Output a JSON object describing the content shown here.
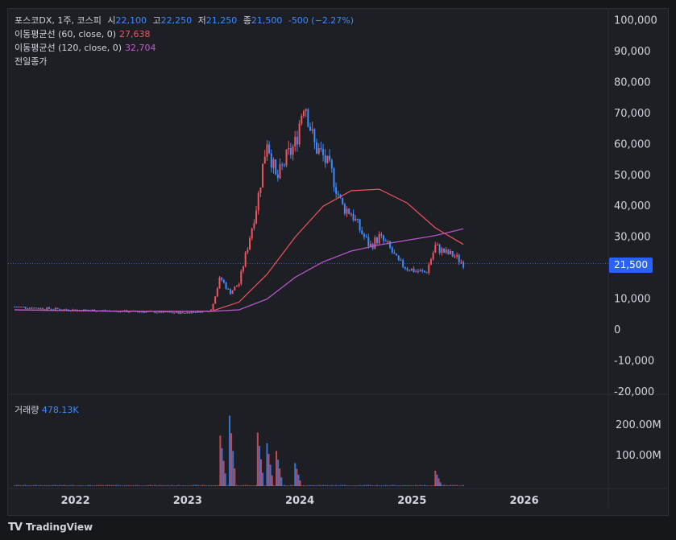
{
  "header": {
    "symbol": "포스코DX, 1주, 코스피",
    "open_label": "시",
    "open": "22,100",
    "high_label": "고",
    "high": "22,250",
    "low_label": "저",
    "low": "21,250",
    "close_label": "종",
    "close": "21,500",
    "change": "-500 (−2.27%)"
  },
  "indicators": [
    {
      "label": "이동평균선 (60, close, 0)",
      "value": "27,638",
      "color": "#f0545e"
    },
    {
      "label": "이동평균선 (120, close, 0)",
      "value": "32,704",
      "color": "#c158d4"
    },
    {
      "label": "전일종가",
      "value": "",
      "color": "#d1d4dc"
    }
  ],
  "current_price_tag": "21,500",
  "volume_panel": {
    "label": "거래량",
    "value": "478.13K"
  },
  "footer": {
    "brand": "TradingView",
    "logo": "TV"
  },
  "colors": {
    "up": "#f0545e",
    "down": "#3d8bff",
    "ma60": "#f0545e",
    "ma120": "#c158d4",
    "price_line": "#2962ff"
  },
  "chart_data": {
    "type": "candlestick",
    "x_ticks": [
      "2022",
      "2023",
      "2024",
      "2025",
      "2026"
    ],
    "price_axis_ticks": [
      "100,000",
      "90,000",
      "80,000",
      "70,000",
      "60,000",
      "50,000",
      "40,000",
      "30,000",
      "20,000",
      "10,000",
      "0",
      "-10,000",
      "-20,000"
    ],
    "price_ylim": [
      -20000,
      100000
    ],
    "volume_axis_ticks": [
      "200.00M",
      "100.00M"
    ],
    "volume_ylim": [
      0,
      245000000
    ],
    "last_close": 21500,
    "close_series": [
      [
        "2021-06",
        7500
      ],
      [
        "2021-09",
        7000
      ],
      [
        "2021-12",
        6500
      ],
      [
        "2022-03",
        6300
      ],
      [
        "2022-06",
        6000
      ],
      [
        "2022-09",
        5800
      ],
      [
        "2022-12",
        5500
      ],
      [
        "2023-02",
        6000
      ],
      [
        "2023-03",
        6500
      ],
      [
        "2023-04",
        17000
      ],
      [
        "2023-05",
        12000
      ],
      [
        "2023-06",
        15000
      ],
      [
        "2023-07",
        28000
      ],
      [
        "2023-08",
        42000
      ],
      [
        "2023-09",
        62000
      ],
      [
        "2023-10",
        48000
      ],
      [
        "2023-11",
        55000
      ],
      [
        "2023-12",
        60000
      ],
      [
        "2024-01",
        75000
      ],
      [
        "2024-02",
        60000
      ],
      [
        "2024-03",
        56000
      ],
      [
        "2024-04",
        50000
      ],
      [
        "2024-05",
        40000
      ],
      [
        "2024-06",
        38000
      ],
      [
        "2024-07",
        32000
      ],
      [
        "2024-08",
        27000
      ],
      [
        "2024-09",
        30000
      ],
      [
        "2024-10",
        27000
      ],
      [
        "2024-11",
        22000
      ],
      [
        "2024-12",
        20000
      ],
      [
        "2025-01",
        19000
      ],
      [
        "2025-02",
        18500
      ],
      [
        "2025-03",
        27000
      ],
      [
        "2025-04",
        25000
      ],
      [
        "2025-05",
        24000
      ],
      [
        "2025-06",
        21500
      ]
    ],
    "ma60_series": [
      [
        "2021-06",
        6500
      ],
      [
        "2022-06",
        6000
      ],
      [
        "2023-03",
        6000
      ],
      [
        "2023-06",
        9000
      ],
      [
        "2023-09",
        18000
      ],
      [
        "2023-12",
        30000
      ],
      [
        "2024-03",
        40000
      ],
      [
        "2024-06",
        45000
      ],
      [
        "2024-09",
        45500
      ],
      [
        "2024-12",
        41000
      ],
      [
        "2025-03",
        33000
      ],
      [
        "2025-06",
        27638
      ]
    ],
    "ma120_series": [
      [
        "2021-06",
        6500
      ],
      [
        "2022-06",
        6000
      ],
      [
        "2023-03",
        6000
      ],
      [
        "2023-06",
        6500
      ],
      [
        "2023-09",
        10000
      ],
      [
        "2023-12",
        17000
      ],
      [
        "2024-03",
        22000
      ],
      [
        "2024-06",
        25500
      ],
      [
        "2024-09",
        27500
      ],
      [
        "2024-12",
        29000
      ],
      [
        "2025-03",
        30500
      ],
      [
        "2025-06",
        32704
      ]
    ],
    "volume_spikes_millions": [
      [
        "2023-04",
        165
      ],
      [
        "2023-05",
        230
      ],
      [
        "2023-08",
        175
      ],
      [
        "2023-09",
        140
      ],
      [
        "2023-10",
        115
      ],
      [
        "2023-12",
        75
      ],
      [
        "2025-03",
        50
      ]
    ]
  }
}
